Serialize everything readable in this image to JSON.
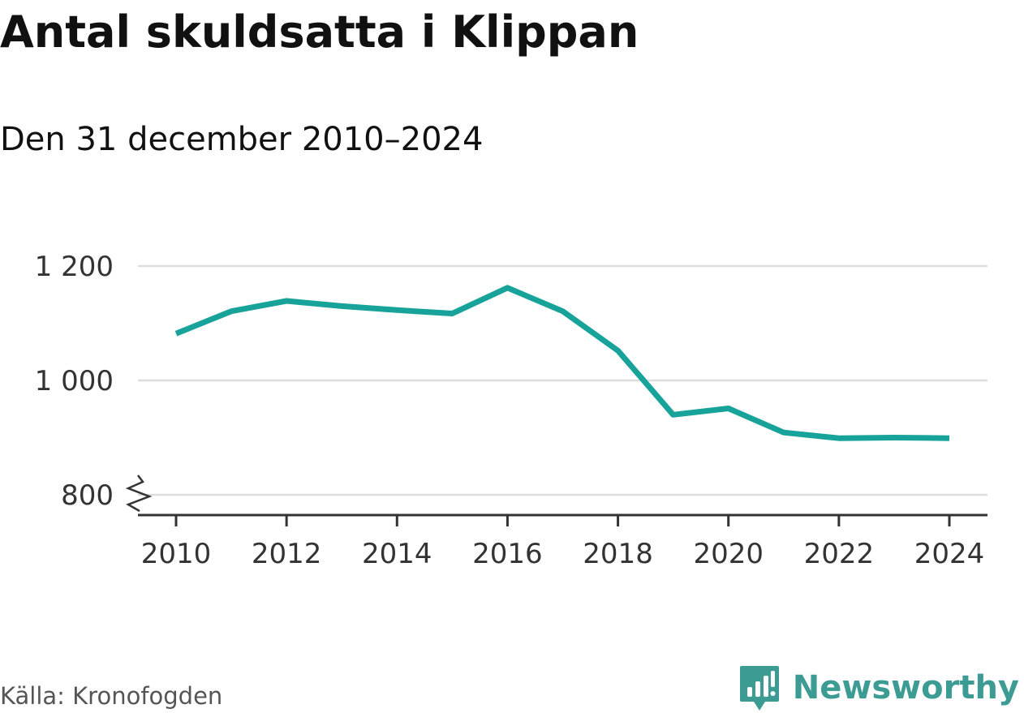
{
  "header": {
    "title": "Antal skuldsatta i Klippan",
    "subtitle": "Den 31 december 2010–2024"
  },
  "footer": {
    "source": "Källa: Kronofogden",
    "brand": "Newsworthy"
  },
  "colors": {
    "line": "#18A39A",
    "brand": "#3C9B92",
    "grid": "#DDDDDD",
    "axis": "#333333"
  },
  "chart_data": {
    "type": "line",
    "x": [
      2010,
      2011,
      2012,
      2013,
      2014,
      2015,
      2016,
      2017,
      2018,
      2019,
      2020,
      2021,
      2022,
      2023,
      2024
    ],
    "series": [
      {
        "values": [
          1082,
          1121,
          1139,
          1130,
          1123,
          1117,
          1162,
          1121,
          1052,
          940,
          951,
          909,
          899,
          900,
          899
        ]
      }
    ],
    "x_ticks": [
      2010,
      2012,
      2014,
      2016,
      2018,
      2020,
      2022,
      2024
    ],
    "y_ticks": [
      800,
      1000,
      1200
    ],
    "y_tick_labels": [
      "800",
      "1 000",
      "1 200"
    ],
    "ylim": [
      800,
      1200
    ],
    "y_axis_break": true,
    "grid": "horizontal",
    "legend": "none"
  }
}
